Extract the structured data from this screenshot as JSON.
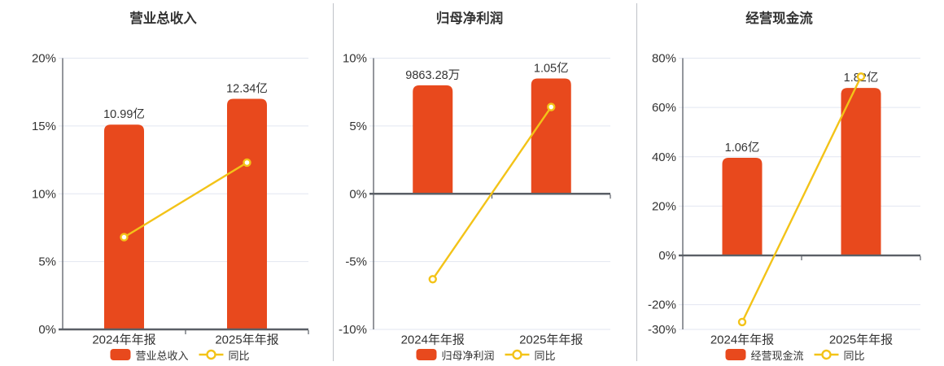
{
  "colors": {
    "bar": "#E8491D",
    "line": "#F3C318",
    "marker_fill": "#FFFFFF",
    "grid": "#E2E6F1",
    "axis": "#5A5F66",
    "text": "#333333",
    "divider": "#BFC2C8",
    "background": "#FFFFFF"
  },
  "chart_data": [
    {
      "type": "bar+line",
      "title": "营业总收入",
      "categories": [
        "2024年年报",
        "2025年年报"
      ],
      "bar_series": {
        "name": "营业总收入",
        "value_labels": [
          "10.99亿",
          "12.34亿"
        ],
        "bar_top_axis_pct": [
          15.1,
          17.0
        ]
      },
      "line_series": {
        "name": "同比",
        "values_pct": [
          6.8,
          12.3
        ]
      },
      "y_ticks_pct": [
        0,
        5,
        10,
        15,
        20
      ],
      "y_tick_labels": [
        "0%",
        "5%",
        "10%",
        "15%",
        "20%"
      ],
      "ylim": [
        0,
        20
      ],
      "grid": true,
      "legend_position": "bottom"
    },
    {
      "type": "bar+line",
      "title": "归母净利润",
      "categories": [
        "2024年年报",
        "2025年年报"
      ],
      "bar_series": {
        "name": "归母净利润",
        "value_labels": [
          "9863.28万",
          "1.05亿"
        ],
        "bar_top_axis_pct": [
          8.0,
          8.5
        ]
      },
      "line_series": {
        "name": "同比",
        "values_pct": [
          -6.3,
          6.4
        ]
      },
      "y_ticks_pct": [
        -10,
        -5,
        0,
        5,
        10
      ],
      "y_tick_labels": [
        "-10%",
        "-5%",
        "0%",
        "5%",
        "10%"
      ],
      "ylim": [
        -10,
        10
      ],
      "grid": true,
      "legend_position": "bottom"
    },
    {
      "type": "bar+line",
      "title": "经营现金流",
      "categories": [
        "2024年年报",
        "2025年年报"
      ],
      "bar_series": {
        "name": "经营现金流",
        "value_labels": [
          "1.06亿",
          "1.82亿"
        ],
        "bar_top_axis_pct": [
          39.6,
          67.9
        ]
      },
      "line_series": {
        "name": "同比",
        "values_pct": [
          -27.0,
          72.5
        ]
      },
      "y_ticks_pct": [
        -30,
        -20,
        0,
        20,
        40,
        60,
        80
      ],
      "y_tick_labels": [
        "-30%",
        "-20%",
        "0%",
        "20%",
        "40%",
        "60%",
        "80%"
      ],
      "ylim": [
        -30,
        80
      ],
      "grid": true,
      "legend_position": "bottom"
    }
  ]
}
